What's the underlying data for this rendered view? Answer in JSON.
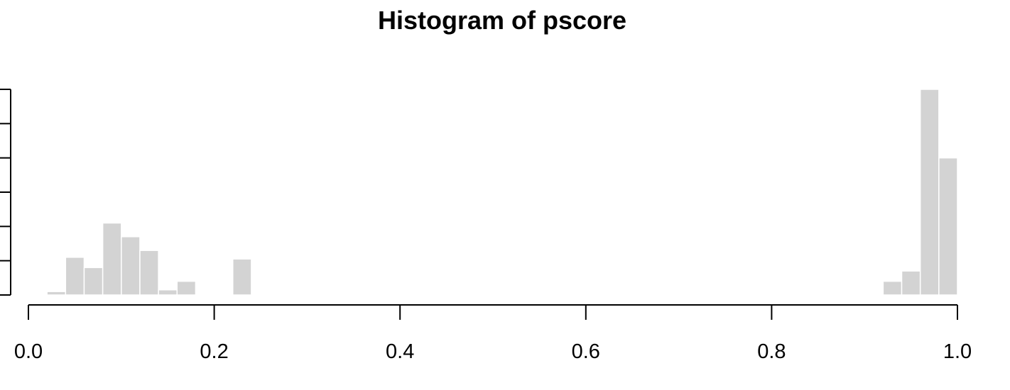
{
  "chart_data": {
    "type": "bar",
    "title": "Histogram of pscore",
    "xlabel": "",
    "ylabel": "",
    "bin_width": 0.02,
    "xlim": [
      0,
      1
    ],
    "ylim": [
      0,
      60
    ],
    "x_ticks": [
      0.0,
      0.2,
      0.4,
      0.6,
      0.8,
      1.0
    ],
    "x_tick_labels": [
      "0.0",
      "0.2",
      "0.4",
      "0.6",
      "0.8",
      "1.0"
    ],
    "y_ticks": [
      0,
      10,
      20,
      30,
      40,
      50,
      60
    ],
    "bar_color": "#d3d3d3",
    "bins": [
      {
        "start": 0.02,
        "end": 0.04,
        "count": 1
      },
      {
        "start": 0.04,
        "end": 0.06,
        "count": 11
      },
      {
        "start": 0.06,
        "end": 0.08,
        "count": 8
      },
      {
        "start": 0.08,
        "end": 0.1,
        "count": 21
      },
      {
        "start": 0.1,
        "end": 0.12,
        "count": 17
      },
      {
        "start": 0.12,
        "end": 0.14,
        "count": 13
      },
      {
        "start": 0.14,
        "end": 0.16,
        "count": 1.5
      },
      {
        "start": 0.16,
        "end": 0.18,
        "count": 4
      },
      {
        "start": 0.22,
        "end": 0.24,
        "count": 10.5
      },
      {
        "start": 0.92,
        "end": 0.94,
        "count": 4
      },
      {
        "start": 0.94,
        "end": 0.96,
        "count": 7
      },
      {
        "start": 0.96,
        "end": 0.98,
        "count": 60
      },
      {
        "start": 0.98,
        "end": 1.0,
        "count": 40
      }
    ]
  }
}
